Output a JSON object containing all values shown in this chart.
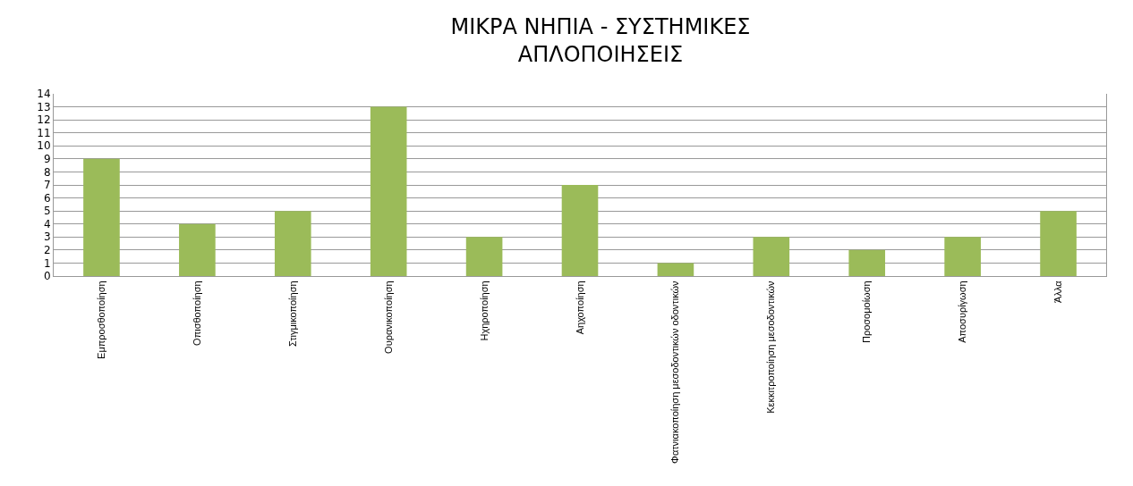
{
  "chart_data": {
    "type": "bar",
    "title": "ΜΙΚΡΑ ΝΗΠΙΑ - ΣΥΣΤΗΜΙΚΕΣ\nΑΠΛΟΠΟΙΗΣΕΙΣ",
    "categories": [
      "Εμπροσθοποίηση",
      "Οπισθοποίηση",
      "Στιγμικοποίηση",
      "Ουρανικοποίηση",
      "Ηχηροποίηση",
      "Αηχοποίηση",
      "Φατνιακοποίηση μεσοδοντικών οδοντικών",
      "Κεκκιτροποίηση μεσοδοντικών",
      "Προσομοίωση",
      "Αποσυρίγωση",
      "Άλλα"
    ],
    "values": [
      9,
      4,
      5,
      13,
      3,
      7,
      1,
      3,
      2,
      3,
      5
    ],
    "color": "#9bbb59",
    "ylim": [
      0,
      14
    ],
    "yticks": [
      0,
      1,
      2,
      3,
      4,
      5,
      6,
      7,
      8,
      9,
      10,
      11,
      12,
      13,
      14
    ],
    "grid": "y"
  }
}
